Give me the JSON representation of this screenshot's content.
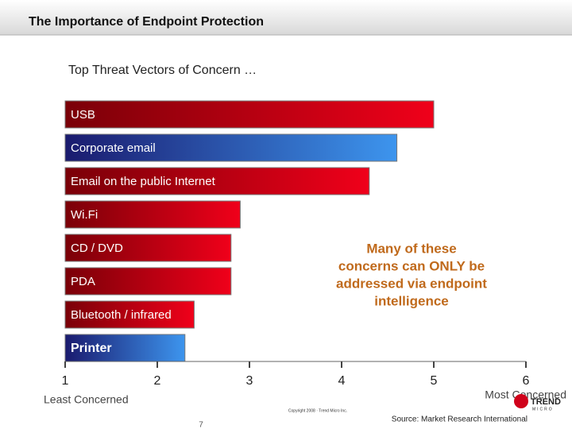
{
  "title": "The Importance of Endpoint Protection",
  "chart_data": {
    "type": "bar",
    "orientation": "horizontal",
    "title": "Top Threat Vectors of Concern …",
    "categories": [
      "USB",
      "Corporate email",
      "Email on the public Internet",
      "Wi.Fi",
      "CD / DVD",
      "PDA",
      "Bluetooth / infrared",
      "Printer"
    ],
    "values": [
      5.0,
      4.6,
      4.3,
      2.9,
      2.8,
      2.8,
      2.4,
      2.3
    ],
    "colors": [
      "#f0001a",
      "#3d95ee",
      "#f0001a",
      "#f0001a",
      "#f0001a",
      "#f0001a",
      "#f0001a",
      "#3d95ee"
    ],
    "xlim": [
      1,
      6
    ],
    "xticks": [
      1,
      2,
      3,
      4,
      5,
      6
    ],
    "x_low_label": "Least Concerned",
    "x_high_label": "Most Concerned",
    "annotation_lines": [
      "Many of these",
      "concerns can ONLY be",
      "addressed via endpoint",
      "intelligence"
    ]
  },
  "footer": {
    "source": "Source: Market Research International",
    "copyright": "Copyright 2008 · Trend Micro Inc.",
    "page": "7",
    "logo_top": "TREND",
    "logo_bottom": "MICRO"
  }
}
